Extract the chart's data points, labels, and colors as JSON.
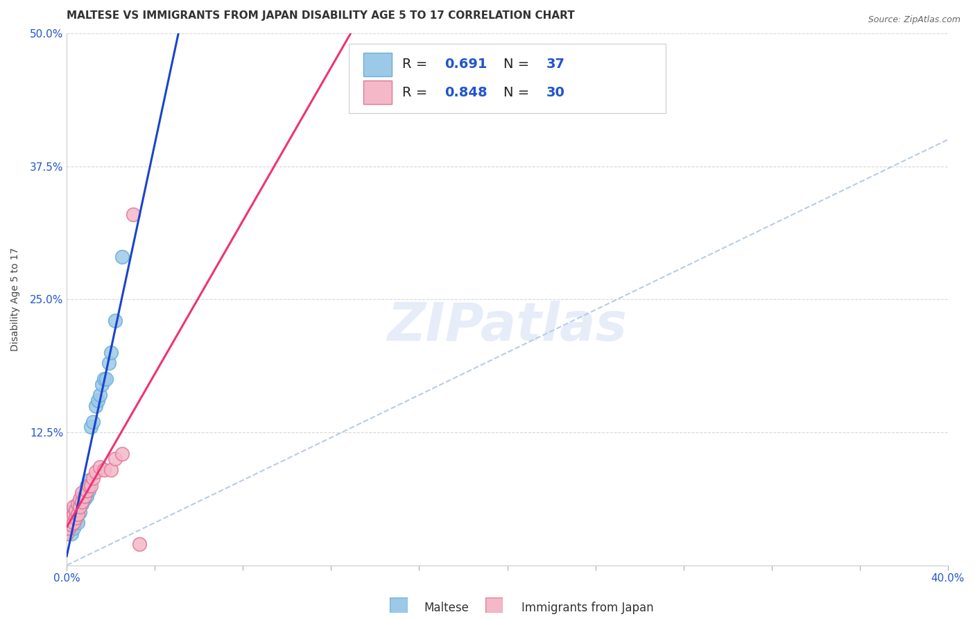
{
  "title": "MALTESE VS IMMIGRANTS FROM JAPAN DISABILITY AGE 5 TO 17 CORRELATION CHART",
  "source": "Source: ZipAtlas.com",
  "ylabel": "Disability Age 5 to 17",
  "watermark": "ZIPatlas",
  "xlim": [
    0.0,
    0.4
  ],
  "ylim": [
    0.0,
    0.5
  ],
  "xticks": [
    0.0,
    0.04,
    0.08,
    0.12,
    0.16,
    0.2,
    0.24,
    0.28,
    0.32,
    0.36,
    0.4
  ],
  "xtick_labels_sparse": {
    "0": "0.0%",
    "10": "40.0%"
  },
  "yticks": [
    0.0,
    0.125,
    0.25,
    0.375,
    0.5
  ],
  "ytick_labels": [
    "",
    "12.5%",
    "25.0%",
    "37.5%",
    "50.0%"
  ],
  "maltese_R": 0.691,
  "maltese_N": 37,
  "japan_R": 0.848,
  "japan_N": 30,
  "maltese_color": "#9dc9e8",
  "maltese_edge": "#6aaed6",
  "japan_color": "#f4b8c8",
  "japan_edge": "#e07898",
  "maltese_line_color": "#1a44cc",
  "japan_line_color": "#ee3377",
  "diagonal_color": "#b8cce4",
  "title_fontsize": 11,
  "axis_label_fontsize": 10,
  "tick_fontsize": 11,
  "legend_fontsize": 14,
  "maltese_x": [
    0.0,
    0.001,
    0.001,
    0.001,
    0.002,
    0.002,
    0.002,
    0.003,
    0.003,
    0.003,
    0.004,
    0.004,
    0.005,
    0.005,
    0.005,
    0.006,
    0.006,
    0.007,
    0.007,
    0.008,
    0.008,
    0.009,
    0.009,
    0.01,
    0.01,
    0.011,
    0.012,
    0.013,
    0.014,
    0.015,
    0.016,
    0.017,
    0.018,
    0.019,
    0.02,
    0.022,
    0.025
  ],
  "maltese_y": [
    0.035,
    0.038,
    0.042,
    0.05,
    0.03,
    0.04,
    0.045,
    0.035,
    0.042,
    0.048,
    0.042,
    0.048,
    0.04,
    0.048,
    0.055,
    0.05,
    0.058,
    0.058,
    0.065,
    0.062,
    0.068,
    0.065,
    0.075,
    0.07,
    0.08,
    0.13,
    0.135,
    0.15,
    0.155,
    0.16,
    0.17,
    0.175,
    0.175,
    0.19,
    0.2,
    0.23,
    0.29
  ],
  "japan_x": [
    0.0,
    0.0,
    0.001,
    0.001,
    0.002,
    0.002,
    0.003,
    0.003,
    0.003,
    0.004,
    0.004,
    0.005,
    0.005,
    0.006,
    0.006,
    0.007,
    0.007,
    0.008,
    0.009,
    0.01,
    0.011,
    0.012,
    0.013,
    0.015,
    0.017,
    0.02,
    0.022,
    0.025,
    0.03,
    0.033
  ],
  "japan_y": [
    0.03,
    0.038,
    0.035,
    0.042,
    0.038,
    0.045,
    0.04,
    0.048,
    0.055,
    0.045,
    0.052,
    0.048,
    0.058,
    0.055,
    0.062,
    0.06,
    0.068,
    0.065,
    0.07,
    0.075,
    0.075,
    0.082,
    0.088,
    0.092,
    0.09,
    0.09,
    0.1,
    0.105,
    0.33,
    0.02
  ],
  "background_color": "#ffffff",
  "grid_color": "#d8d8d8"
}
